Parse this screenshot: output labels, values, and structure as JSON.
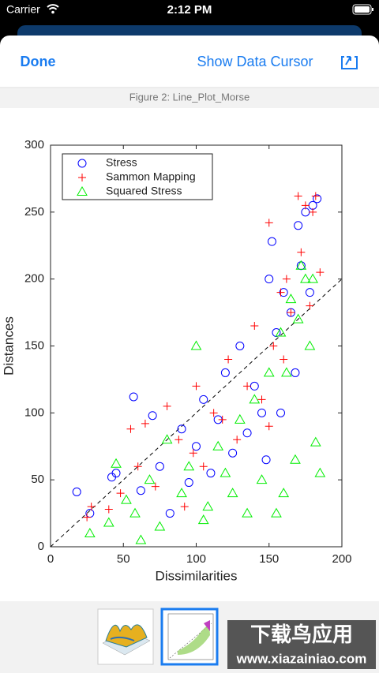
{
  "status_bar": {
    "carrier": "Carrier",
    "time": "2:12 PM"
  },
  "toolbar": {
    "done": "Done",
    "action": "Show Data Cursor"
  },
  "figure_title": "Figure 2: Line_Plot_Morse",
  "chart_data": {
    "type": "scatter",
    "xlabel": "Dissimilarities",
    "ylabel": "Distances",
    "xlim": [
      0,
      200
    ],
    "ylim": [
      0,
      300
    ],
    "xticks": [
      0,
      50,
      100,
      150,
      200
    ],
    "yticks": [
      0,
      50,
      100,
      150,
      200,
      250,
      300
    ],
    "legend": "upper left",
    "reference_line": {
      "x": [
        0,
        200
      ],
      "values": [
        0,
        200
      ],
      "style": "dashed",
      "color": "#000000"
    },
    "series": [
      {
        "name": "Stress",
        "color": "#0000ff",
        "marker": "circle",
        "x": [
          18,
          27,
          42,
          45,
          57,
          62,
          70,
          75,
          82,
          90,
          95,
          100,
          105,
          110,
          115,
          120,
          125,
          130,
          135,
          140,
          145,
          150,
          152,
          155,
          160,
          165,
          170,
          172,
          175,
          178,
          180,
          183,
          168,
          158,
          148
        ],
        "values": [
          41,
          25,
          52,
          55,
          112,
          42,
          98,
          60,
          25,
          88,
          48,
          75,
          110,
          55,
          95,
          130,
          70,
          150,
          85,
          120,
          100,
          200,
          228,
          160,
          190,
          175,
          240,
          210,
          250,
          190,
          255,
          260,
          130,
          100,
          65
        ]
      },
      {
        "name": "Sammon Mapping",
        "color": "#ff0000",
        "marker": "plus",
        "x": [
          25,
          28,
          40,
          48,
          55,
          60,
          65,
          72,
          80,
          88,
          92,
          98,
          100,
          105,
          112,
          118,
          122,
          128,
          135,
          140,
          145,
          150,
          153,
          158,
          162,
          165,
          170,
          172,
          175,
          178,
          180,
          182,
          185,
          160,
          150
        ],
        "values": [
          22,
          30,
          28,
          40,
          88,
          60,
          92,
          45,
          105,
          80,
          30,
          70,
          120,
          60,
          100,
          95,
          140,
          80,
          120,
          165,
          110,
          242,
          150,
          190,
          200,
          175,
          262,
          220,
          255,
          180,
          250,
          262,
          205,
          140,
          90
        ]
      },
      {
        "name": "Squared Stress",
        "color": "#00ee00",
        "marker": "triangle",
        "x": [
          27,
          40,
          45,
          52,
          58,
          62,
          68,
          75,
          80,
          90,
          95,
          100,
          105,
          108,
          115,
          120,
          125,
          130,
          135,
          140,
          145,
          150,
          155,
          158,
          162,
          165,
          170,
          172,
          175,
          178,
          180,
          182,
          185,
          168,
          160
        ],
        "values": [
          10,
          18,
          62,
          35,
          25,
          5,
          50,
          15,
          80,
          40,
          60,
          150,
          20,
          30,
          75,
          55,
          40,
          95,
          25,
          110,
          50,
          130,
          25,
          160,
          130,
          185,
          170,
          210,
          200,
          150,
          200,
          78,
          55,
          65,
          40
        ]
      }
    ]
  },
  "watermark": {
    "title": "下载鸟应用",
    "url": "www.xiazainiao.com"
  }
}
